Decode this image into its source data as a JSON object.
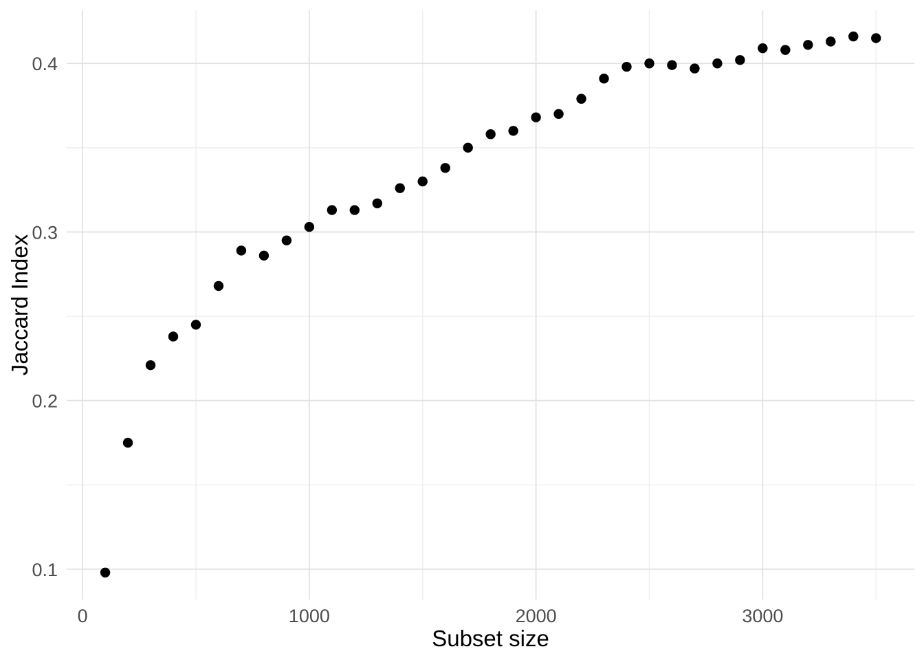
{
  "chart_data": {
    "type": "scatter",
    "title": "",
    "xlabel": "Subset size",
    "ylabel": "Jaccard Index",
    "x": [
      100,
      200,
      300,
      400,
      500,
      600,
      700,
      800,
      900,
      1000,
      1100,
      1200,
      1300,
      1400,
      1500,
      1600,
      1700,
      1800,
      1900,
      2000,
      2100,
      2200,
      2300,
      2400,
      2500,
      2600,
      2700,
      2800,
      2900,
      3000,
      3100,
      3200,
      3300,
      3400,
      3500
    ],
    "y": [
      0.098,
      0.175,
      0.221,
      0.238,
      0.245,
      0.268,
      0.289,
      0.286,
      0.295,
      0.303,
      0.313,
      0.313,
      0.317,
      0.326,
      0.33,
      0.338,
      0.35,
      0.358,
      0.36,
      0.368,
      0.37,
      0.379,
      0.391,
      0.398,
      0.4,
      0.399,
      0.397,
      0.4,
      0.402,
      0.409,
      0.408,
      0.411,
      0.413,
      0.416,
      0.415
    ],
    "xlim": [
      -70,
      3670
    ],
    "ylim": [
      0.082,
      0.4315
    ],
    "x_ticks_major": [
      0,
      1000,
      2000,
      3000
    ],
    "x_tick_labels": [
      "0",
      "1000",
      "2000",
      "3000"
    ],
    "x_ticks_minor": [
      500,
      1500,
      2500,
      3500
    ],
    "y_ticks_major": [
      0.1,
      0.2,
      0.3,
      0.4
    ],
    "y_tick_labels": [
      "0.1",
      "0.2",
      "0.3",
      "0.4"
    ],
    "y_ticks_minor": [
      0.15,
      0.25,
      0.35
    ],
    "grid": true,
    "legend_position": "none",
    "point_color": "#000000",
    "grid_major_color": "#E2E2E2",
    "grid_minor_color": "#EBEBEB",
    "tick_label_color": "#4D4D4D",
    "axis_title_color": "#000000",
    "background_color": "#FFFFFF"
  }
}
